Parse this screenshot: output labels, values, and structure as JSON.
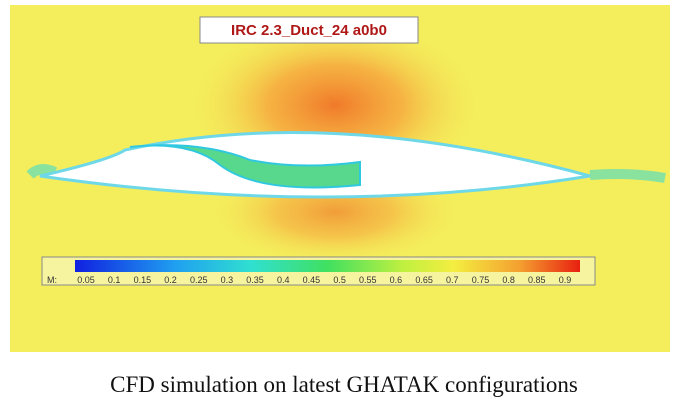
{
  "figure": {
    "label": "IRC 2.3_Duct_24 a0b0",
    "colorbar": {
      "title": "M:",
      "ticks": [
        0.05,
        0.1,
        0.15,
        0.2,
        0.25,
        0.3,
        0.35,
        0.4,
        0.45,
        0.5,
        0.55,
        0.6,
        0.65,
        0.7,
        0.75,
        0.8,
        0.85,
        0.9
      ]
    },
    "caption": "CFD simulation on latest GHATAK configurations"
  }
}
